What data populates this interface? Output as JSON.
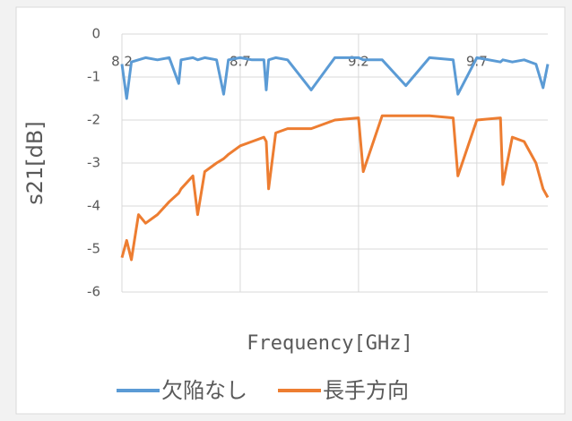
{
  "chart_data": {
    "type": "line",
    "x_label": "Frequency[GHz]",
    "y_label": "s21[dB]",
    "x": [
      8.2,
      8.22,
      8.24,
      8.27,
      8.3,
      8.35,
      8.4,
      8.44,
      8.45,
      8.5,
      8.52,
      8.55,
      8.6,
      8.63,
      8.65,
      8.7,
      8.75,
      8.8,
      8.81,
      8.82,
      8.85,
      8.9,
      9.0,
      9.1,
      9.2,
      9.22,
      9.3,
      9.4,
      9.5,
      9.6,
      9.62,
      9.7,
      9.8,
      9.81,
      9.85,
      9.9,
      9.95,
      9.98,
      10.0
    ],
    "series": [
      {
        "name": "欠陥なし",
        "color": "#5b9bd5",
        "values": [
          -0.7,
          -1.5,
          -0.65,
          -0.6,
          -0.55,
          -0.6,
          -0.55,
          -1.15,
          -0.6,
          -0.55,
          -0.6,
          -0.55,
          -0.6,
          -1.4,
          -0.6,
          -0.55,
          -0.6,
          -0.6,
          -1.3,
          -0.6,
          -0.55,
          -0.6,
          -1.3,
          -0.55,
          -0.55,
          -0.6,
          -0.6,
          -1.2,
          -0.55,
          -0.6,
          -1.4,
          -0.55,
          -0.65,
          -0.6,
          -0.65,
          -0.6,
          -0.7,
          -1.25,
          -0.7
        ]
      },
      {
        "name": "長手方向",
        "color": "#ed7d31",
        "values": [
          -5.2,
          -4.8,
          -5.25,
          -4.2,
          -4.4,
          -4.2,
          -3.9,
          -3.7,
          -3.6,
          -3.3,
          -4.2,
          -3.2,
          -3.0,
          -2.9,
          -2.8,
          -2.6,
          -2.5,
          -2.4,
          -2.5,
          -3.6,
          -2.3,
          -2.2,
          -2.2,
          -2.0,
          -1.95,
          -3.2,
          -1.9,
          -1.9,
          -1.9,
          -1.95,
          -3.3,
          -2.0,
          -1.95,
          -3.5,
          -2.4,
          -2.5,
          -3.0,
          -3.6,
          -3.8
        ]
      }
    ],
    "xlim": [
      8.2,
      10.0
    ],
    "xticks": [
      8.2,
      8.7,
      9.2,
      9.7
    ],
    "ylim": [
      -6,
      0
    ],
    "yticks": [
      0,
      -1,
      -2,
      -3,
      -4,
      -5,
      -6
    ],
    "grid": true,
    "legend": "bottom"
  }
}
